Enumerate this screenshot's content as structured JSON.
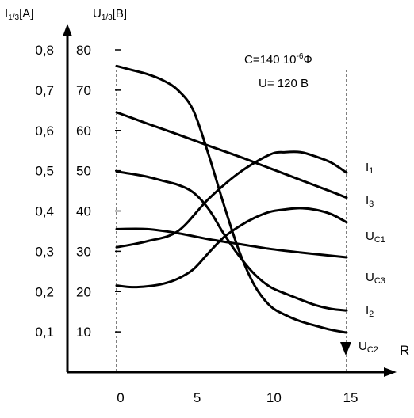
{
  "chart_data": {
    "type": "line",
    "y_left_label": {
      "main": "I",
      "sub": "1/3",
      "unit": "[A]"
    },
    "y_right_label": {
      "main": "U",
      "sub": "1/3",
      "unit": "[B]"
    },
    "xlabel": "R",
    "x_ticks": [
      0,
      5,
      10,
      15
    ],
    "xlim": [
      0,
      15
    ],
    "current_ticks": [
      "0,1",
      "0,2",
      "0,3",
      "0,4",
      "0,5",
      "0,6",
      "0,7",
      "0,8"
    ],
    "voltage_ticks": [
      10,
      20,
      30,
      40,
      50,
      60,
      70,
      80
    ],
    "ylim": [
      0,
      80
    ],
    "grid": false,
    "annotations": [
      {
        "text": "C=140 10",
        "sup": "-6",
        "suffix": "Ф"
      },
      {
        "text": "U= 120 В"
      }
    ],
    "series": [
      {
        "name": "I",
        "sub": "1",
        "x": [
          0,
          2,
          4,
          6,
          8,
          10,
          12,
          14,
          15
        ],
        "values": [
          64.5,
          61.7,
          59.0,
          56.2,
          53.5,
          50.6,
          47.7,
          44.8,
          43.3
        ]
      },
      {
        "name": "I",
        "sub": "3",
        "x": [
          0,
          2,
          4,
          6,
          8,
          10,
          11,
          12,
          13,
          14,
          15
        ],
        "values": [
          31,
          32.5,
          35,
          43,
          49.5,
          54,
          54.6,
          54.6,
          53.5,
          52,
          49.5
        ]
      },
      {
        "name": "U",
        "sub": "C1",
        "x": [
          0,
          2,
          4,
          6,
          8,
          10,
          12,
          14,
          15
        ],
        "values": [
          35.5,
          35.5,
          34.5,
          33,
          31.8,
          30.6,
          29.7,
          28.9,
          28.5
        ]
      },
      {
        "name": "U",
        "sub": "C3",
        "x": [
          0,
          1,
          2,
          3,
          4,
          5,
          6,
          7,
          8,
          9,
          10,
          11,
          12,
          13,
          14,
          15
        ],
        "values": [
          21.5,
          21.1,
          21.3,
          21.9,
          23.2,
          25.5,
          29.6,
          33.5,
          36.2,
          38.3,
          39.8,
          40.4,
          40.7,
          40.3,
          39.2,
          37.2
        ]
      },
      {
        "name": "I",
        "sub": "2",
        "x": [
          0,
          1,
          2,
          3,
          4,
          5,
          6,
          7,
          8,
          9,
          10,
          11,
          12,
          13,
          14,
          15
        ],
        "values": [
          49.8,
          49.2,
          48.5,
          47.5,
          46.5,
          44.6,
          40.5,
          34.3,
          28.8,
          24.3,
          21.2,
          19.5,
          18.0,
          16.6,
          15.7,
          15.3
        ]
      },
      {
        "name": "U",
        "sub": "C2",
        "x": [
          0,
          1,
          2,
          3,
          4,
          5,
          6,
          7,
          8,
          9,
          10,
          11,
          12,
          13,
          14,
          15
        ],
        "values": [
          76,
          75,
          74,
          72.5,
          70,
          65,
          54,
          41.5,
          30,
          21.5,
          16.5,
          14.2,
          12.6,
          11.5,
          10.5,
          9.8
        ]
      }
    ]
  }
}
